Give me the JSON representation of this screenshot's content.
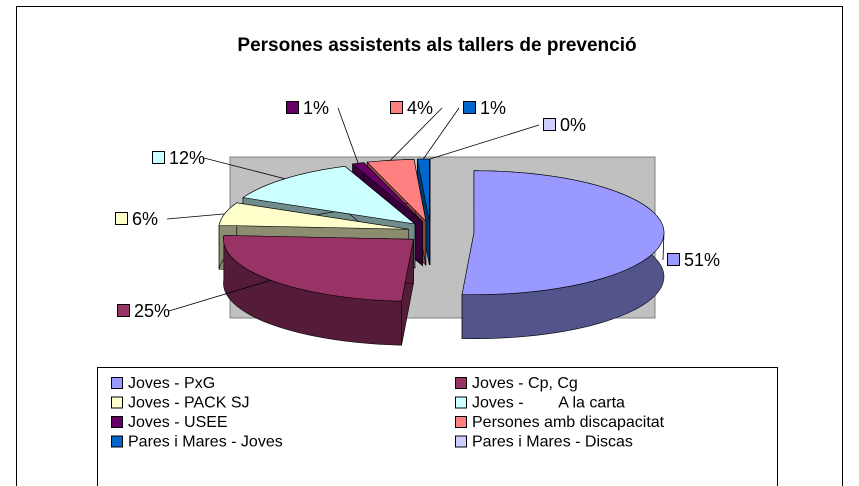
{
  "chart_data": {
    "type": "pie3d",
    "title": "Persones assistents als tallers de prevenció",
    "categories": [
      "Joves - PxG",
      "Joves - Cp, Cg",
      "Joves - PACK SJ",
      "Joves -        A la carta",
      "Joves - USEE",
      "Persones amb discapacitat",
      "Pares i Mares - Joves",
      "Pares i Mares - Discas"
    ],
    "values": [
      51,
      25,
      6,
      12,
      1,
      4,
      1,
      0
    ],
    "value_labels": [
      "51%",
      "25%",
      "6%",
      "12%",
      "1%",
      "4%",
      "1%",
      "0%"
    ],
    "colors": [
      "#9999ff",
      "#993366",
      "#ffffcc",
      "#ccffff",
      "#660066",
      "#ff8080",
      "#0066cc",
      "#ccccff"
    ],
    "legend": "bottom"
  }
}
